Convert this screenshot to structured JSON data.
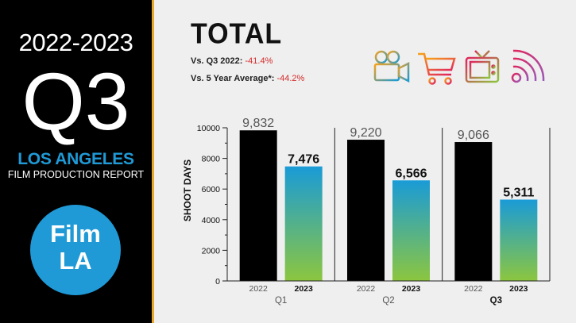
{
  "left": {
    "years": "2022-2023",
    "quarter": "Q3",
    "city": "LOS ANGELES",
    "report": "FILM PRODUCTION REPORT",
    "logo_line1": "Film",
    "logo_line2": "LA"
  },
  "header": {
    "title": "TOTAL",
    "stat1_label": "Vs. Q3 2022:",
    "stat1_value": "-41.4%",
    "stat2_label": "Vs. 5 Year Average*:",
    "stat2_value": "-44.2%"
  },
  "icons": [
    "film-camera-icon",
    "shopping-cart-icon",
    "television-icon",
    "broadcast-signal-icon"
  ],
  "chart_data": {
    "type": "bar",
    "ylabel": "SHOOT DAYS",
    "ylim": [
      0,
      10000
    ],
    "yticks": [
      0,
      2000,
      4000,
      6000,
      8000,
      10000
    ],
    "groups": [
      {
        "label": "Q1",
        "bars": [
          {
            "year": "2022",
            "value": 9832,
            "text": "9,832"
          },
          {
            "year": "2023",
            "value": 7476,
            "text": "7,476"
          }
        ]
      },
      {
        "label": "Q2",
        "bars": [
          {
            "year": "2022",
            "value": 9220,
            "text": "9,220"
          },
          {
            "year": "2023",
            "value": 6566,
            "text": "6,566"
          }
        ]
      },
      {
        "label": "Q3",
        "bars": [
          {
            "year": "2022",
            "value": 9066,
            "text": "9,066"
          },
          {
            "year": "2023",
            "value": 5311,
            "text": "5,311"
          }
        ]
      }
    ],
    "colors": {
      "2022": "#000000",
      "2023_top": "#1a9bd7",
      "2023_bottom": "#8cc63f"
    }
  }
}
